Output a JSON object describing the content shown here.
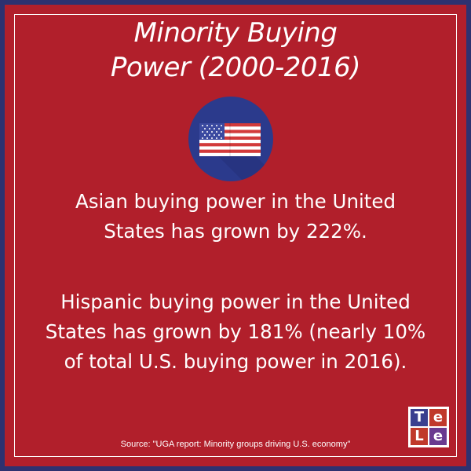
{
  "title": {
    "line1": "Minority Buying",
    "line2": "Power (2000-2016)"
  },
  "flag_icon": "us-flag-icon",
  "paragraph1": {
    "line1": "Asian buying power in the United",
    "line2": "States has grown by 222%."
  },
  "paragraph2": {
    "line1": "Hispanic buying power in the United",
    "line2": "States has grown by 181% (nearly 10%",
    "line3": "of total U.S. buying power in 2016)."
  },
  "source": "Source: \"UGA report: Minority groups driving U.S. economy\"",
  "logo": {
    "cell1": "T",
    "cell2": "e",
    "cell3": "L",
    "cell4": "e"
  },
  "colors": {
    "background": "#b11f2b",
    "border": "#2d3170",
    "badge": "#2b3a8c",
    "text": "#ffffff"
  }
}
